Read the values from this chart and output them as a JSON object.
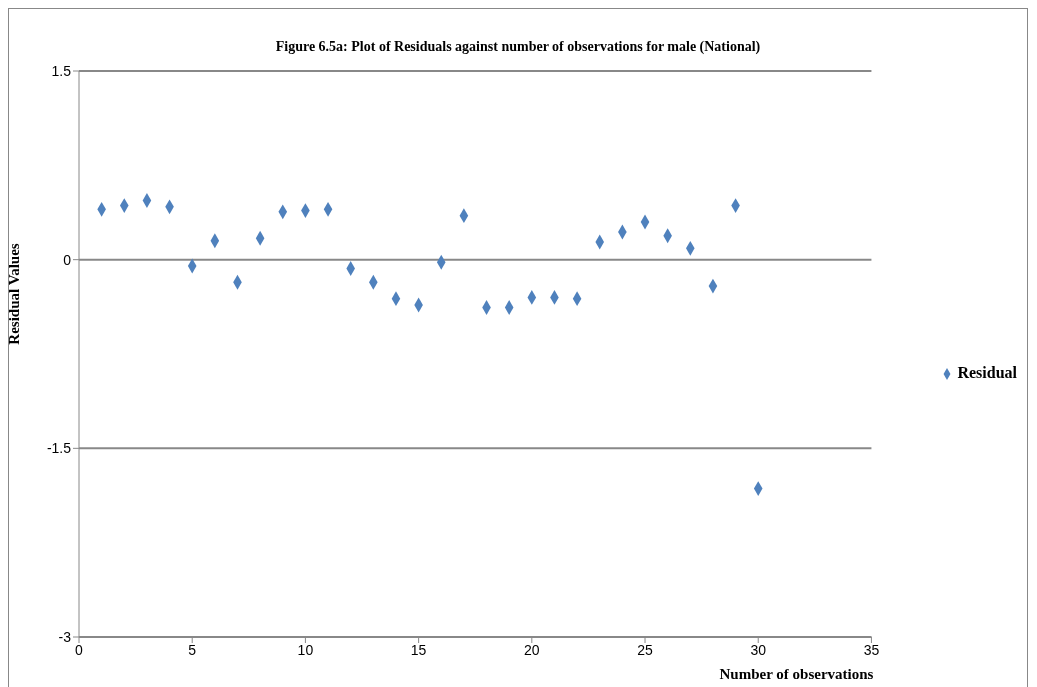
{
  "chart_data": {
    "type": "scatter",
    "title": "Figure 6.5a: Plot of Residuals against number of observations for male (National)",
    "xlabel": "Number of observations",
    "ylabel": "Residual Values",
    "x": [
      1,
      2,
      3,
      4,
      5,
      6,
      7,
      8,
      9,
      10,
      11,
      12,
      13,
      14,
      15,
      16,
      17,
      18,
      19,
      20,
      21,
      22,
      23,
      24,
      25,
      26,
      27,
      28,
      29,
      30
    ],
    "series": [
      {
        "name": "Residual",
        "color": "#4f81bd",
        "values": [
          0.4,
          0.43,
          0.47,
          0.42,
          -0.05,
          0.15,
          -0.18,
          0.17,
          0.38,
          0.39,
          0.4,
          -0.07,
          -0.18,
          -0.31,
          -0.36,
          -0.02,
          0.35,
          -0.38,
          -0.38,
          -0.3,
          -0.3,
          -0.31,
          0.14,
          0.22,
          0.3,
          0.19,
          0.09,
          -0.21,
          0.43,
          -1.82
        ]
      }
    ],
    "xlim": [
      0,
      35
    ],
    "xticks": [
      0,
      5,
      10,
      15,
      20,
      25,
      30,
      35
    ],
    "ylim": [
      -3,
      1.5
    ],
    "yticks": [
      -3,
      -1.5,
      0,
      1.5
    ],
    "grid": "y",
    "legend": "right",
    "marker": "diamond"
  }
}
